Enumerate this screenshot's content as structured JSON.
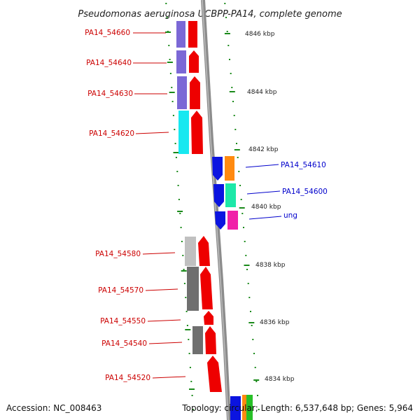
{
  "title": "Pseudomonas aeruginosa UCBPP-PA14, complete genome",
  "footer": {
    "accession": "Accession: NC_008463",
    "topology": "Topology: circular; Length: 6,537,648 bp; Genes: 5,964"
  },
  "colors": {
    "backbone": "#8c8c8c",
    "tick": "#1a8a1a",
    "label_red": "#cc0000",
    "label_blue": "#0000cc"
  },
  "kbp_labels": [
    "4846 kbp",
    "4844 kbp",
    "4842 kbp",
    "4840 kbp",
    "4838 kbp",
    "4836 kbp",
    "4834 kbp"
  ],
  "genes_left": [
    {
      "label": "PA14_54660"
    },
    {
      "label": "PA14_54640"
    },
    {
      "label": "PA14_54630"
    },
    {
      "label": "PA14_54620"
    },
    {
      "label": "PA14_54580"
    },
    {
      "label": "PA14_54570"
    },
    {
      "label": "PA14_54550"
    },
    {
      "label": "PA14_54540"
    },
    {
      "label": "PA14_54520"
    }
  ],
  "genes_right": [
    {
      "label": "PA14_54610"
    },
    {
      "label": "PA14_54600"
    },
    {
      "label": "ung"
    }
  ]
}
